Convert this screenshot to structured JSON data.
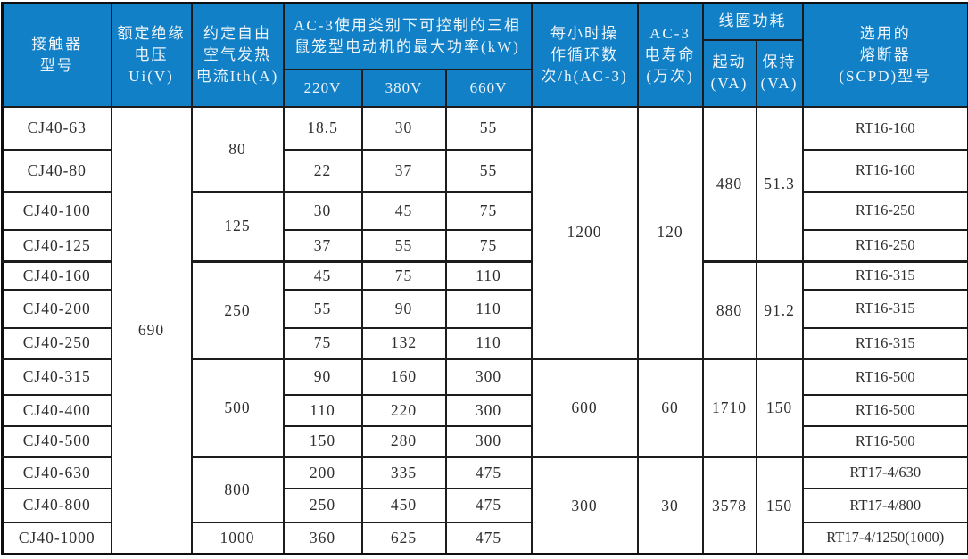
{
  "colors": {
    "header_bg": "#1280c6",
    "header_text": "#eef5fb",
    "body_text": "#2e2e2e",
    "border": "#1c1c1c",
    "page_bg": "#ffffff"
  },
  "header": {
    "model": "接触器\n型号",
    "ui": "额定绝缘\n电压Ui(V)",
    "ith": "约定自由\n空气发热\n电流Ith(A)",
    "power_group": "AC-3使用类别下可控制的三相\n鼠笼型电动机的最大功率(kW)",
    "power_cols": [
      "220V",
      "380V",
      "660V"
    ],
    "cycles": "每小时操\n作循环数\n次/h(AC-3)",
    "life": "AC-3\n电寿命\n(万次)",
    "coil_group": "线圈功耗",
    "coil_start": "起动\n(VA)",
    "coil_hold": "保持\n(VA)",
    "fuse": "选用的\n熔断器\n(SCPD)型号"
  },
  "table": {
    "rows": [
      {
        "model": "CJ40-63",
        "p220": "18.5",
        "p380": "30",
        "p660": "55",
        "fuse": "RT16-160"
      },
      {
        "model": "CJ40-80",
        "p220": "22",
        "p380": "37",
        "p660": "55",
        "fuse": "RT16-160"
      },
      {
        "model": "CJ40-100",
        "p220": "30",
        "p380": "45",
        "p660": "75",
        "fuse": "RT16-250"
      },
      {
        "model": "CJ40-125",
        "p220": "37",
        "p380": "55",
        "p660": "75",
        "fuse": "RT16-250"
      },
      {
        "model": "CJ40-160",
        "p220": "45",
        "p380": "75",
        "p660": "110",
        "fuse": "RT16-315"
      },
      {
        "model": "CJ40-200",
        "p220": "55",
        "p380": "90",
        "p660": "110",
        "fuse": "RT16-315"
      },
      {
        "model": "CJ40-250",
        "p220": "75",
        "p380": "132",
        "p660": "110",
        "fuse": "RT16-315"
      },
      {
        "model": "CJ40-315",
        "p220": "90",
        "p380": "160",
        "p660": "300",
        "fuse": "RT16-500"
      },
      {
        "model": "CJ40-400",
        "p220": "110",
        "p380": "220",
        "p660": "300",
        "fuse": "RT16-500"
      },
      {
        "model": "CJ40-500",
        "p220": "150",
        "p380": "280",
        "p660": "300",
        "fuse": "RT16-500"
      },
      {
        "model": "CJ40-630",
        "p220": "200",
        "p380": "335",
        "p660": "475",
        "fuse": "RT17-4/630"
      },
      {
        "model": "CJ40-800",
        "p220": "250",
        "p380": "450",
        "p660": "475",
        "fuse": "RT17-4/800"
      },
      {
        "model": "CJ40-1000",
        "p220": "360",
        "p380": "625",
        "p660": "475",
        "fuse": "RT17-4/1250(1000)"
      }
    ],
    "ui_spans": [
      {
        "value": "690",
        "start": 0,
        "span": 13
      }
    ],
    "ith_spans": [
      {
        "value": "80",
        "start": 0,
        "span": 2
      },
      {
        "value": "125",
        "start": 2,
        "span": 2
      },
      {
        "value": "250",
        "start": 4,
        "span": 3
      },
      {
        "value": "500",
        "start": 7,
        "span": 3
      },
      {
        "value": "800",
        "start": 10,
        "span": 2
      },
      {
        "value": "1000",
        "start": 12,
        "span": 1
      }
    ],
    "cycles_spans": [
      {
        "value": "1200",
        "start": 0,
        "span": 7
      },
      {
        "value": "600",
        "start": 7,
        "span": 3
      },
      {
        "value": "300",
        "start": 10,
        "span": 3
      }
    ],
    "life_spans": [
      {
        "value": "120",
        "start": 0,
        "span": 7
      },
      {
        "value": "60",
        "start": 7,
        "span": 3
      },
      {
        "value": "30",
        "start": 10,
        "span": 3
      }
    ],
    "coil_start_spans": [
      {
        "value": "480",
        "start": 0,
        "span": 4
      },
      {
        "value": "880",
        "start": 4,
        "span": 3
      },
      {
        "value": "1710",
        "start": 7,
        "span": 3
      },
      {
        "value": "3578",
        "start": 10,
        "span": 3
      }
    ],
    "coil_hold_spans": [
      {
        "value": "51.3",
        "start": 0,
        "span": 4
      },
      {
        "value": "91.2",
        "start": 4,
        "span": 3
      },
      {
        "value": "150",
        "start": 7,
        "span": 3
      },
      {
        "value": "150",
        "start": 10,
        "span": 3
      }
    ]
  }
}
